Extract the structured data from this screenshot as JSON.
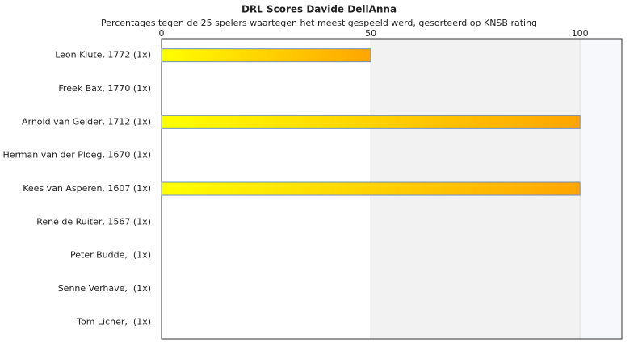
{
  "chart_data": {
    "type": "bar",
    "orientation": "horizontal",
    "title": "DRL Scores Davide DellAnna",
    "subtitle": "Percentages tegen de 25 spelers waartegen het meest gespeeld werd, gesorteerd op KNSB rating",
    "categories": [
      "Leon Klute, 1772 (1x)",
      "Freek Bax, 1770 (1x)",
      "Arnold van Gelder, 1712 (1x)",
      "Herman van der Ploeg, 1670 (1x)",
      "Kees van Asperen, 1607 (1x)",
      "René de Ruiter, 1567 (1x)",
      "Peter Budde,  (1x)",
      "Senne Verhave,  (1x)",
      "Tom Licher,  (1x)"
    ],
    "values": [
      50,
      0,
      100,
      0,
      100,
      0,
      0,
      0,
      0
    ],
    "xlim": [
      0,
      110
    ],
    "xticks": [
      0,
      50,
      100
    ],
    "grid": true,
    "color_start": "#ffff00",
    "color_end": "#ffa500",
    "border_color": "#6f8fbf"
  }
}
